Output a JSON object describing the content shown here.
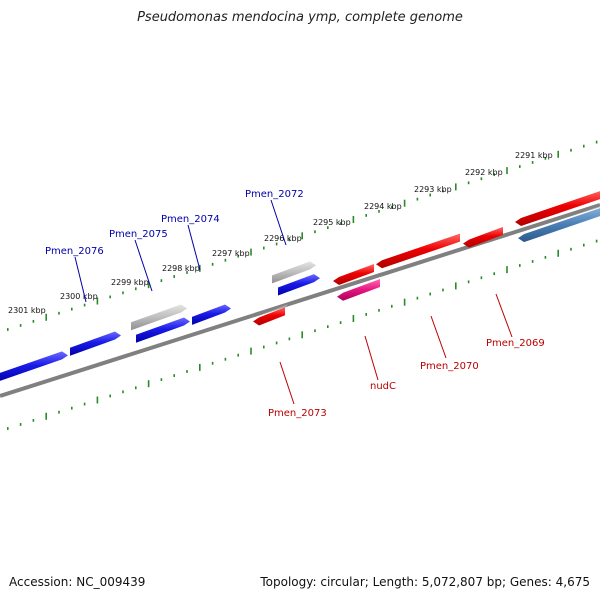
{
  "title": "Pseudomonas mendocina ymp, complete genome",
  "footer": {
    "accession": "Accession: NC_009439",
    "info": "Topology: circular; Length: 5,072,807 bp; Genes: 4,675"
  },
  "colors": {
    "forward_gene": "#1010e0",
    "reverse_gene": "#e00000",
    "pseudo_gene": "#b8b8b8",
    "rna_gene": "#e0107a",
    "steel_gene": "#4a7fb5",
    "backbone": "#808080",
    "tick": "#2a8a2a",
    "forward_label": "#0000aa",
    "reverse_label": "#bb0000"
  },
  "ruler_labels": [
    "2301 kbp",
    "2300 kbp",
    "2299 kbp",
    "2298 kbp",
    "2297 kbp",
    "2296 kbp",
    "2295 kbp",
    "2294 kbp",
    "2293 kbp",
    "2292 kbp",
    "2291 kbp"
  ],
  "forward_gene_labels": [
    "Pmen_2076",
    "Pmen_2075",
    "Pmen_2074",
    "Pmen_2072"
  ],
  "reverse_gene_labels": [
    "Pmen_2073",
    "nudC",
    "Pmen_2070",
    "Pmen_2069"
  ]
}
